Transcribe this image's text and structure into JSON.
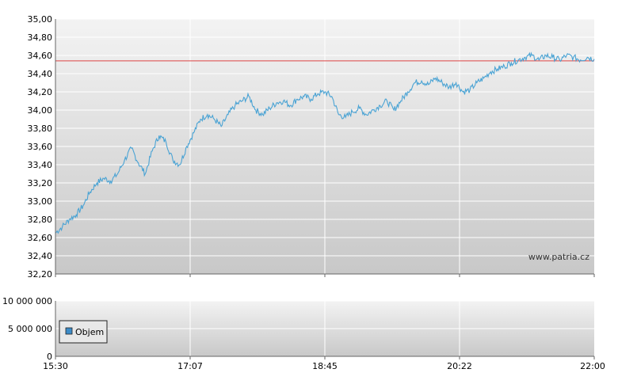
{
  "watermark": "www.patria.cz",
  "legend": {
    "label": "Objem",
    "color": "#3c8cc8"
  },
  "colors": {
    "price_line": "#4aa3d4",
    "reference_line": "#dd4444"
  },
  "chart_data": [
    {
      "type": "line",
      "title": "",
      "xlabel": "",
      "ylabel": "",
      "ylim": [
        32.2,
        35.0
      ],
      "y_ticks": [
        "32,20",
        "32,40",
        "32,60",
        "32,80",
        "33,00",
        "33,20",
        "33,40",
        "33,60",
        "33,80",
        "34,00",
        "34,20",
        "34,40",
        "34,60",
        "34,80",
        "35,00"
      ],
      "x_ticks": [
        "15:30",
        "17:07",
        "18:45",
        "20:22",
        "22:00"
      ],
      "reference_value": 34.54,
      "grid": true,
      "x": [
        "15:30",
        "15:35",
        "15:40",
        "15:45",
        "15:50",
        "15:55",
        "16:00",
        "16:05",
        "16:10",
        "16:15",
        "16:20",
        "16:25",
        "16:30",
        "16:35",
        "16:40",
        "16:45",
        "16:50",
        "16:55",
        "17:00",
        "17:05",
        "17:10",
        "17:15",
        "17:20",
        "17:25",
        "17:30",
        "17:35",
        "17:40",
        "17:45",
        "17:50",
        "17:55",
        "18:00",
        "18:05",
        "18:10",
        "18:15",
        "18:20",
        "18:25",
        "18:30",
        "18:35",
        "18:40",
        "18:45",
        "18:50",
        "18:55",
        "19:00",
        "19:05",
        "19:10",
        "19:15",
        "19:20",
        "19:25",
        "19:30",
        "19:35",
        "19:40",
        "19:45",
        "19:50",
        "19:55",
        "20:00",
        "20:05",
        "20:10",
        "20:15",
        "20:20",
        "20:25",
        "20:30",
        "20:35",
        "20:40",
        "20:45",
        "20:50",
        "20:55",
        "21:00",
        "21:05",
        "21:10",
        "21:15",
        "21:20",
        "21:25",
        "21:30",
        "21:35",
        "21:40",
        "21:45",
        "21:50",
        "21:55",
        "22:00"
      ],
      "values": [
        32.65,
        32.72,
        32.8,
        32.85,
        32.95,
        33.1,
        33.2,
        33.25,
        33.22,
        33.3,
        33.45,
        33.58,
        33.42,
        33.3,
        33.55,
        33.72,
        33.65,
        33.45,
        33.4,
        33.6,
        33.75,
        33.9,
        33.95,
        33.9,
        33.82,
        33.95,
        34.05,
        34.1,
        34.15,
        34.0,
        33.95,
        34.02,
        34.08,
        34.1,
        34.05,
        34.12,
        34.15,
        34.12,
        34.18,
        34.2,
        34.15,
        33.95,
        33.92,
        33.98,
        34.02,
        33.95,
        34.0,
        34.05,
        34.1,
        34.0,
        34.1,
        34.2,
        34.3,
        34.32,
        34.28,
        34.35,
        34.3,
        34.25,
        34.3,
        34.2,
        34.22,
        34.3,
        34.35,
        34.42,
        34.45,
        34.48,
        34.52,
        34.55,
        34.58,
        34.6,
        34.55,
        34.6,
        34.58,
        34.55,
        34.6,
        34.58,
        34.55,
        34.58,
        34.56
      ],
      "series": [
        {
          "values_ref": "values"
        }
      ]
    },
    {
      "type": "bar",
      "title": "",
      "ylim": [
        0,
        10000000
      ],
      "y_ticks": [
        "0",
        "5 000 000",
        "10 000 000"
      ],
      "x_ticks": [
        "15:30",
        "17:07",
        "18:45",
        "20:22",
        "22:00"
      ],
      "series": [
        {
          "name": "Objem",
          "values": []
        }
      ]
    }
  ]
}
